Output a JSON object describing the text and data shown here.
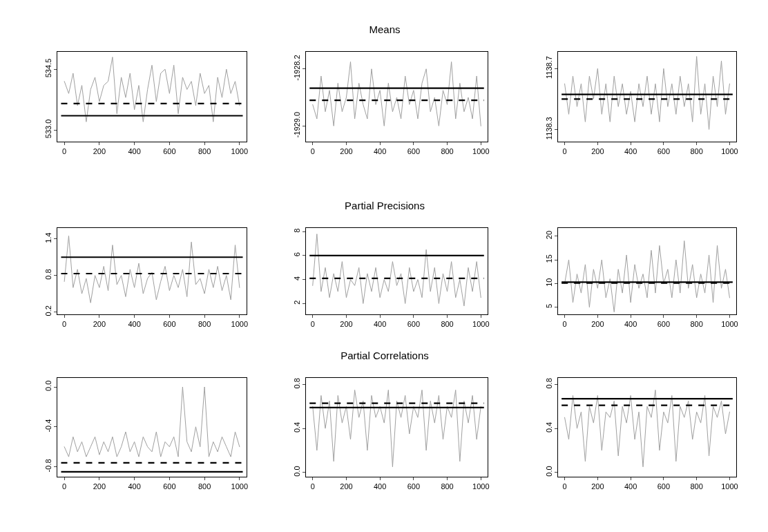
{
  "chart_data": [
    {
      "type": "line",
      "x": [
        0,
        25,
        50,
        75,
        100,
        125,
        150,
        175,
        200,
        225,
        250,
        275,
        300,
        325,
        350,
        375,
        400,
        425,
        450,
        475,
        500,
        525,
        550,
        575,
        600,
        625,
        650,
        675,
        700,
        725,
        750,
        775,
        800,
        825,
        850,
        875,
        900,
        925,
        950,
        975,
        1000
      ],
      "xlim": [
        -40,
        1040
      ],
      "xticks": [
        0,
        200,
        400,
        600,
        800,
        1000
      ],
      "ylim": [
        532.71,
        534.93
      ],
      "yticks": [
        {
          "value": 533,
          "label": "533.0"
        },
        534.5
      ],
      "series": [
        {
          "color": "#a0a0a0",
          "values": [
            534.2,
            533.9,
            534.4,
            533.6,
            534.1,
            533.2,
            534.0,
            534.3,
            533.7,
            534.1,
            534.2,
            534.8,
            533.4,
            534.3,
            533.8,
            534.4,
            533.5,
            534.1,
            533.2,
            534.0,
            534.6,
            533.7,
            534.4,
            534.5,
            533.9,
            534.6,
            533.4,
            534.3,
            534.0,
            534.2,
            533.6,
            534.4,
            533.9,
            534.1,
            533.2,
            534.3,
            533.8,
            534.5,
            533.9,
            534.2,
            533.6
          ]
        }
      ],
      "ref_lines": [
        {
          "axis": "y",
          "value": 533.35,
          "color": "#000000",
          "line_style": "solid"
        },
        {
          "axis": "y",
          "value": 533.65,
          "color": "#000000",
          "line_style": "dashed"
        }
      ]
    },
    {
      "type": "line",
      "title": "Means",
      "x": [
        0,
        25,
        50,
        75,
        100,
        125,
        150,
        175,
        200,
        225,
        250,
        275,
        300,
        325,
        350,
        375,
        400,
        425,
        450,
        475,
        500,
        525,
        550,
        575,
        600,
        625,
        650,
        675,
        700,
        725,
        750,
        775,
        800,
        825,
        850,
        875,
        900,
        925,
        950,
        975,
        1000
      ],
      "xlim": [
        -40,
        1040
      ],
      "xticks": [
        0,
        200,
        400,
        600,
        800,
        1000
      ],
      "ylim": [
        -1929.22,
        -1927.96
      ],
      "yticks": [
        {
          "value": -1929,
          "label": "-1929.0"
        },
        -1928.2
      ],
      "series": [
        {
          "color": "#a0a0a0",
          "values": [
            -1928.7,
            -1928.9,
            -1928.3,
            -1928.8,
            -1928.5,
            -1929.0,
            -1928.4,
            -1928.8,
            -1928.6,
            -1928.1,
            -1928.9,
            -1928.4,
            -1928.7,
            -1928.9,
            -1928.2,
            -1928.7,
            -1928.5,
            -1929.0,
            -1928.4,
            -1928.8,
            -1928.6,
            -1928.9,
            -1928.3,
            -1928.7,
            -1928.5,
            -1928.9,
            -1928.4,
            -1928.2,
            -1928.8,
            -1928.6,
            -1929.0,
            -1928.5,
            -1928.7,
            -1928.1,
            -1928.9,
            -1928.4,
            -1928.8,
            -1928.6,
            -1928.9,
            -1928.3,
            -1929.0
          ]
        }
      ],
      "ref_lines": [
        {
          "axis": "y",
          "value": -1928.47,
          "color": "#000000",
          "line_style": "solid"
        },
        {
          "axis": "y",
          "value": -1928.64,
          "color": "#000000",
          "line_style": "dashed"
        }
      ]
    },
    {
      "type": "line",
      "x": [
        0,
        25,
        50,
        75,
        100,
        125,
        150,
        175,
        200,
        225,
        250,
        275,
        300,
        325,
        350,
        375,
        400,
        425,
        450,
        475,
        500,
        525,
        550,
        575,
        600,
        625,
        650,
        675,
        700,
        725,
        750,
        775,
        800,
        825,
        850,
        875,
        900,
        925,
        950,
        975,
        1000
      ],
      "xlim": [
        -40,
        1040
      ],
      "xticks": [
        0,
        200,
        400,
        600,
        800,
        1000
      ],
      "ylim": [
        1138.22,
        1138.81
      ],
      "yticks": [
        1138.3,
        1138.7
      ],
      "series": [
        {
          "color": "#a0a0a0",
          "values": [
            1138.6,
            1138.4,
            1138.65,
            1138.45,
            1138.6,
            1138.35,
            1138.65,
            1138.5,
            1138.7,
            1138.4,
            1138.6,
            1138.35,
            1138.65,
            1138.45,
            1138.6,
            1138.4,
            1138.55,
            1138.35,
            1138.6,
            1138.45,
            1138.65,
            1138.4,
            1138.6,
            1138.35,
            1138.7,
            1138.45,
            1138.6,
            1138.4,
            1138.65,
            1138.45,
            1138.6,
            1138.35,
            1138.78,
            1138.4,
            1138.6,
            1138.3,
            1138.65,
            1138.45,
            1138.75,
            1138.4,
            1138.6
          ]
        }
      ],
      "ref_lines": [
        {
          "axis": "y",
          "value": 1138.53,
          "color": "#000000",
          "line_style": "solid"
        },
        {
          "axis": "y",
          "value": 1138.5,
          "color": "#000000",
          "line_style": "dashed"
        }
      ]
    },
    {
      "type": "line",
      "x": [
        0,
        25,
        50,
        75,
        100,
        125,
        150,
        175,
        200,
        225,
        250,
        275,
        300,
        325,
        350,
        375,
        400,
        425,
        450,
        475,
        500,
        525,
        550,
        575,
        600,
        625,
        650,
        675,
        700,
        725,
        750,
        775,
        800,
        825,
        850,
        875,
        900,
        925,
        950,
        975,
        1000
      ],
      "xlim": [
        -40,
        1040
      ],
      "xticks": [
        0,
        200,
        400,
        600,
        800,
        1000
      ],
      "ylim": [
        0.16,
        1.58
      ],
      "yticks": [
        0.2,
        0.8,
        1.4
      ],
      "series": [
        {
          "color": "#a0a0a0",
          "values": [
            0.7,
            1.45,
            0.6,
            0.9,
            0.5,
            0.75,
            0.35,
            0.8,
            0.6,
            0.95,
            0.55,
            1.3,
            0.65,
            0.8,
            0.45,
            0.9,
            0.6,
            1.0,
            0.5,
            0.75,
            0.85,
            0.4,
            0.7,
            0.95,
            0.55,
            0.8,
            0.6,
            0.9,
            0.45,
            1.35,
            0.65,
            0.75,
            0.5,
            0.9,
            0.6,
            0.95,
            0.55,
            0.8,
            0.4,
            1.3,
            0.6
          ]
        }
      ],
      "ref_lines": [
        {
          "axis": "y",
          "value": 1.1,
          "color": "#000000",
          "line_style": "solid"
        },
        {
          "axis": "y",
          "value": 0.83,
          "color": "#000000",
          "line_style": "dashed"
        }
      ]
    },
    {
      "type": "line",
      "title": "Partial Precisions",
      "x": [
        0,
        25,
        50,
        75,
        100,
        125,
        150,
        175,
        200,
        225,
        250,
        275,
        300,
        325,
        350,
        375,
        400,
        425,
        450,
        475,
        500,
        525,
        550,
        575,
        600,
        625,
        650,
        675,
        700,
        725,
        750,
        775,
        800,
        825,
        850,
        875,
        900,
        925,
        950,
        975,
        1000
      ],
      "xlim": [
        -40,
        1040
      ],
      "xticks": [
        0,
        200,
        400,
        600,
        800,
        1000
      ],
      "ylim": [
        1.1,
        8.3
      ],
      "yticks": [
        2,
        4,
        6,
        8
      ],
      "series": [
        {
          "color": "#a0a0a0",
          "values": [
            3.5,
            7.8,
            3,
            5,
            2.5,
            4.5,
            3,
            5.5,
            2.5,
            4,
            3.5,
            5,
            2,
            4.5,
            3,
            5,
            2.5,
            4,
            3,
            5.5,
            3.5,
            4.5,
            2,
            5,
            3,
            4,
            2.5,
            6.5,
            3,
            5,
            2,
            4.5,
            3,
            5.5,
            2.5,
            4,
            1.8,
            5,
            3,
            5.5,
            2.5
          ]
        }
      ],
      "ref_lines": [
        {
          "axis": "y",
          "value": 6,
          "color": "#000000",
          "line_style": "solid"
        },
        {
          "axis": "y",
          "value": 4.1,
          "color": "#000000",
          "line_style": "dashed"
        }
      ]
    },
    {
      "type": "line",
      "x": [
        0,
        25,
        50,
        75,
        100,
        125,
        150,
        175,
        200,
        225,
        250,
        275,
        300,
        325,
        350,
        375,
        400,
        425,
        450,
        475,
        500,
        525,
        550,
        575,
        600,
        625,
        650,
        675,
        700,
        725,
        750,
        775,
        800,
        825,
        850,
        875,
        900,
        925,
        950,
        975,
        1000
      ],
      "xlim": [
        -40,
        1040
      ],
      "xticks": [
        0,
        200,
        400,
        600,
        800,
        1000
      ],
      "ylim": [
        3.5,
        21.7
      ],
      "yticks": [
        5,
        10,
        15,
        20
      ],
      "series": [
        {
          "color": "#a0a0a0",
          "values": [
            10,
            15,
            6,
            12,
            8,
            14,
            5,
            13,
            9,
            15,
            7,
            11,
            4,
            13,
            8,
            16,
            6,
            14,
            9,
            12,
            7,
            17,
            8,
            18,
            10,
            13,
            7,
            15,
            8,
            19,
            9,
            14,
            7,
            12,
            8,
            16,
            6,
            18,
            9,
            13,
            7
          ]
        }
      ],
      "ref_lines": [
        {
          "axis": "y",
          "value": 10.3,
          "color": "#000000",
          "line_style": "solid"
        },
        {
          "axis": "y",
          "value": 10.1,
          "color": "#000000",
          "line_style": "dashed"
        }
      ]
    },
    {
      "type": "line",
      "x": [
        0,
        25,
        50,
        75,
        100,
        125,
        150,
        175,
        200,
        225,
        250,
        275,
        300,
        325,
        350,
        375,
        400,
        425,
        450,
        475,
        500,
        525,
        550,
        575,
        600,
        625,
        650,
        675,
        700,
        725,
        750,
        775,
        800,
        825,
        850,
        875,
        900,
        925,
        950,
        975,
        1000
      ],
      "xlim": [
        -40,
        1040
      ],
      "xticks": [
        0,
        200,
        400,
        600,
        800,
        1000
      ],
      "ylim": [
        -0.9,
        0.09
      ],
      "yticks": [
        -0.8,
        -0.4,
        {
          "value": 0,
          "label": "0.0"
        }
      ],
      "series": [
        {
          "color": "#a0a0a0",
          "values": [
            -0.6,
            -0.7,
            -0.5,
            -0.65,
            -0.55,
            -0.7,
            -0.6,
            -0.5,
            -0.68,
            -0.55,
            -0.65,
            -0.5,
            -0.7,
            -0.6,
            -0.45,
            -0.65,
            -0.55,
            -0.7,
            -0.5,
            -0.6,
            -0.65,
            -0.45,
            -0.7,
            -0.55,
            -0.6,
            -0.5,
            -0.7,
            0,
            -0.55,
            -0.65,
            -0.4,
            -0.6,
            0,
            -0.7,
            -0.55,
            -0.65,
            -0.5,
            -0.6,
            -0.7,
            -0.45,
            -0.6
          ]
        }
      ],
      "ref_lines": [
        {
          "axis": "y",
          "value": -0.85,
          "color": "#000000",
          "line_style": "solid"
        },
        {
          "axis": "y",
          "value": -0.76,
          "color": "#000000",
          "line_style": "dashed"
        }
      ]
    },
    {
      "type": "line",
      "title": "Partial Correlations",
      "x": [
        0,
        25,
        50,
        75,
        100,
        125,
        150,
        175,
        200,
        225,
        250,
        275,
        300,
        325,
        350,
        375,
        400,
        425,
        450,
        475,
        500,
        525,
        550,
        575,
        600,
        625,
        650,
        675,
        700,
        725,
        750,
        775,
        800,
        825,
        850,
        875,
        900,
        925,
        950,
        975,
        1000
      ],
      "xlim": [
        -40,
        1040
      ],
      "xticks": [
        0,
        200,
        400,
        600,
        800,
        1000
      ],
      "ylim": [
        -0.04,
        0.86
      ],
      "yticks": [
        {
          "value": 0,
          "label": "0.0"
        },
        0.4,
        0.8
      ],
      "series": [
        {
          "color": "#a0a0a0",
          "values": [
            0.6,
            0.2,
            0.7,
            0.4,
            0.65,
            0.1,
            0.7,
            0.45,
            0.6,
            0.3,
            0.75,
            0.5,
            0.65,
            0.2,
            0.7,
            0.5,
            0.6,
            0.45,
            0.75,
            0.05,
            0.65,
            0.5,
            0.7,
            0.35,
            0.6,
            0.5,
            0.75,
            0.2,
            0.65,
            0.45,
            0.7,
            0.3,
            0.6,
            0.5,
            0.75,
            0.1,
            0.65,
            0.45,
            0.7,
            0.3,
            0.6
          ]
        }
      ],
      "ref_lines": [
        {
          "axis": "y",
          "value": 0.59,
          "color": "#000000",
          "line_style": "solid"
        },
        {
          "axis": "y",
          "value": 0.63,
          "color": "#000000",
          "line_style": "dashed"
        }
      ]
    },
    {
      "type": "line",
      "x": [
        0,
        25,
        50,
        75,
        100,
        125,
        150,
        175,
        200,
        225,
        250,
        275,
        300,
        325,
        350,
        375,
        400,
        425,
        450,
        475,
        500,
        525,
        550,
        575,
        600,
        625,
        650,
        675,
        700,
        725,
        750,
        775,
        800,
        825,
        850,
        875,
        900,
        925,
        950,
        975,
        1000
      ],
      "xlim": [
        -40,
        1040
      ],
      "xticks": [
        0,
        200,
        400,
        600,
        800,
        1000
      ],
      "ylim": [
        -0.04,
        0.86
      ],
      "yticks": [
        {
          "value": 0,
          "label": "0.0"
        },
        0.4,
        0.8
      ],
      "series": [
        {
          "color": "#a0a0a0",
          "values": [
            0.5,
            0.3,
            0.7,
            0.4,
            0.55,
            0.1,
            0.6,
            0.45,
            0.7,
            0.2,
            0.55,
            0.5,
            0.65,
            0.15,
            0.6,
            0.45,
            0.7,
            0.3,
            0.55,
            0.05,
            0.6,
            0.5,
            0.75,
            0.2,
            0.55,
            0.45,
            0.7,
            0.1,
            0.6,
            0.5,
            0.65,
            0.3,
            0.55,
            0.45,
            0.7,
            0.15,
            0.6,
            0.5,
            0.65,
            0.35,
            0.55
          ]
        }
      ],
      "ref_lines": [
        {
          "axis": "y",
          "value": 0.67,
          "color": "#000000",
          "line_style": "solid"
        },
        {
          "axis": "y",
          "value": 0.61,
          "color": "#000000",
          "line_style": "dashed"
        }
      ]
    }
  ]
}
